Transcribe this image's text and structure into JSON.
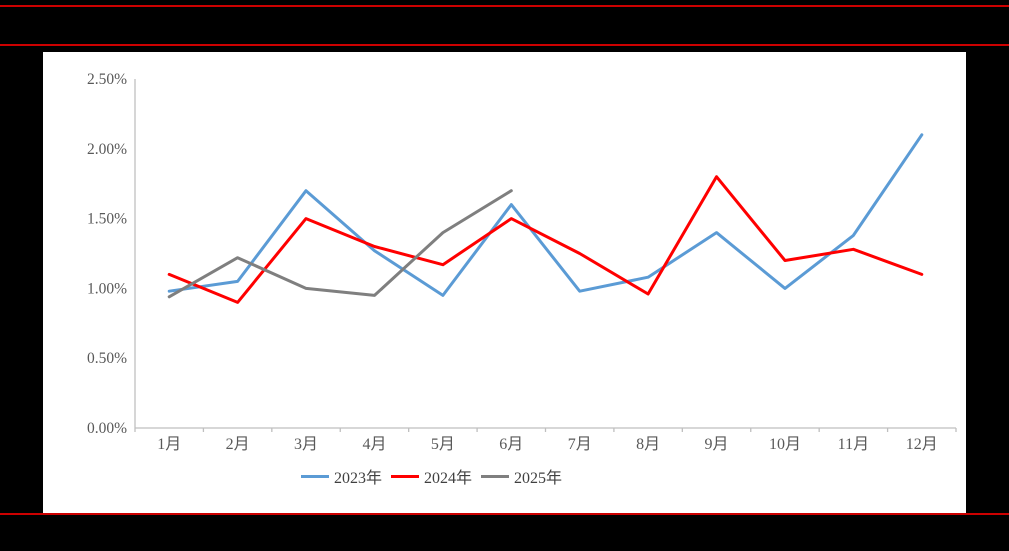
{
  "page": {
    "background_color": "#000000",
    "panel_color": "#ffffff",
    "rule_color": "#CC0000"
  },
  "chart_data": {
    "type": "line",
    "title": "",
    "xlabel": "",
    "ylabel": "",
    "categories": [
      "1月",
      "2月",
      "3月",
      "4月",
      "5月",
      "6月",
      "7月",
      "8月",
      "9月",
      "10月",
      "11月",
      "12月"
    ],
    "series": [
      {
        "name": "2023年",
        "color": "#5B9BD5",
        "values": [
          0.98,
          1.05,
          1.7,
          1.27,
          0.95,
          1.6,
          0.98,
          1.08,
          1.4,
          1.0,
          1.38,
          2.1
        ]
      },
      {
        "name": "2024年",
        "color": "#FF0000",
        "values": [
          1.1,
          0.9,
          1.5,
          1.3,
          1.17,
          1.5,
          1.25,
          0.96,
          1.8,
          1.2,
          1.28,
          1.1
        ]
      },
      {
        "name": "2025年",
        "color": "#7F7F7F",
        "values": [
          0.94,
          1.22,
          1.0,
          0.95,
          1.4,
          1.7
        ]
      }
    ],
    "ylim": [
      0,
      2.5
    ],
    "ytick_step": 0.5,
    "ytick_labels": [
      "0.00%",
      "0.50%",
      "1.00%",
      "1.50%",
      "2.00%",
      "2.50%"
    ],
    "grid": false,
    "legend_position": "bottom",
    "axis_color": "#BFBFBF",
    "label_color": "#595959"
  }
}
